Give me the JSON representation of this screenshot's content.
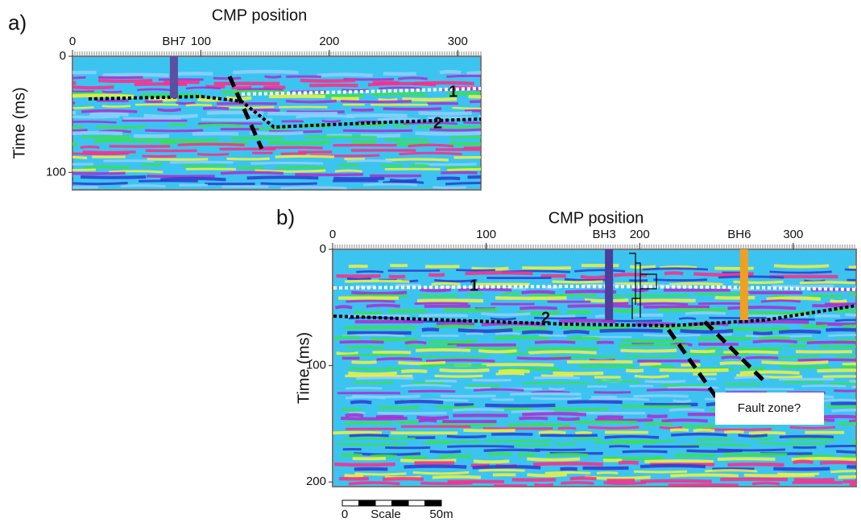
{
  "panels": [
    {
      "label": "a)",
      "xlabel": "CMP position",
      "ylabel": "Time (ms)",
      "xlim": [
        0,
        318
      ],
      "ylim": [
        0,
        115
      ],
      "xticks": [
        0,
        100,
        200,
        300
      ],
      "yticks": [
        0,
        100
      ],
      "boreholes": [
        {
          "label": "BH7",
          "x": 79,
          "color": "#5a4fa0"
        }
      ],
      "horizon_labels": [
        "1",
        "2"
      ]
    },
    {
      "label": "b)",
      "xlabel": "CMP position",
      "ylabel": "Time (ms)",
      "xlim": [
        0,
        341
      ],
      "ylim": [
        0,
        204
      ],
      "xticks": [
        0,
        100,
        200,
        300
      ],
      "yticks": [
        0,
        100,
        200
      ],
      "boreholes": [
        {
          "label": "BH3",
          "x": 180,
          "color": "#4a3f9c"
        },
        {
          "label": "BH6",
          "x": 268,
          "color": "#f0a020"
        }
      ],
      "horizon_labels": [
        "1",
        "2"
      ],
      "annotation": "Fault zone?",
      "scale_bar": {
        "start": "0",
        "label": "Scale",
        "end": "50m"
      }
    }
  ]
}
